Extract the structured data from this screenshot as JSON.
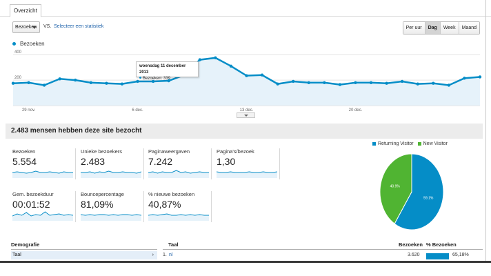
{
  "tab": {
    "label": "Overzicht"
  },
  "controls": {
    "metric_select": "Bezoeken",
    "vs": "VS.",
    "compare_link": "Selecteer een statistiek",
    "periods": [
      "Per uur",
      "Dag",
      "Week",
      "Maand"
    ],
    "active_period": "Dag"
  },
  "chart_legend": "Bezoeken",
  "chart_data": {
    "type": "area",
    "series": [
      {
        "name": "Bezoeken",
        "values": [
          175,
          180,
          160,
          210,
          200,
          180,
          175,
          170,
          190,
          190,
          195,
          240,
          360,
          375,
          310,
          235,
          240,
          170,
          190,
          180,
          180,
          165,
          180,
          180,
          175,
          190,
          170,
          175,
          160,
          215,
          225
        ]
      }
    ],
    "ylim": [
      0,
      450
    ],
    "yticks": [
      "400",
      "200"
    ],
    "xticks": [
      "29 nov.",
      "6 dec.",
      "13 dec.",
      "20 dec."
    ],
    "tooltip": {
      "date": "woensdag 11 december 2013",
      "label": "Bezoeken",
      "value": "339"
    }
  },
  "summary_title": "2.483 mensen hebben deze site bezocht",
  "metrics": [
    {
      "label": "Bezoeken",
      "value": "5.554"
    },
    {
      "label": "Unieke bezoekers",
      "value": "2.483"
    },
    {
      "label": "Paginaweergaven",
      "value": "7.242"
    },
    {
      "label": "Pagina's/bezoek",
      "value": "1,30"
    },
    {
      "label": "Gem. bezoekduur",
      "value": "00:01:52"
    },
    {
      "label": "Bouncepercentage",
      "value": "81,09%"
    },
    {
      "label": "% nieuwe bezoeken",
      "value": "40,87%"
    }
  ],
  "pie": {
    "legend": [
      {
        "name": "Returning Visitor",
        "color": "#058dc7"
      },
      {
        "name": "New Visitor",
        "color": "#50b432"
      }
    ],
    "slices": [
      {
        "name": "Returning Visitor",
        "value": 59.1,
        "label": "59.1%",
        "color": "#058dc7"
      },
      {
        "name": "New Visitor",
        "value": 40.9,
        "label": "40.9%",
        "color": "#50b432"
      }
    ]
  },
  "bottom": {
    "demografie": "Demografie",
    "taal_nav": "Taal",
    "taal_header": "Taal",
    "col_bezoeken": "Bezoeken",
    "col_pct": "% Bezoeken",
    "row": {
      "rank": "1.",
      "name": "nl",
      "visits": "3.620",
      "pct": "65,18%"
    }
  }
}
